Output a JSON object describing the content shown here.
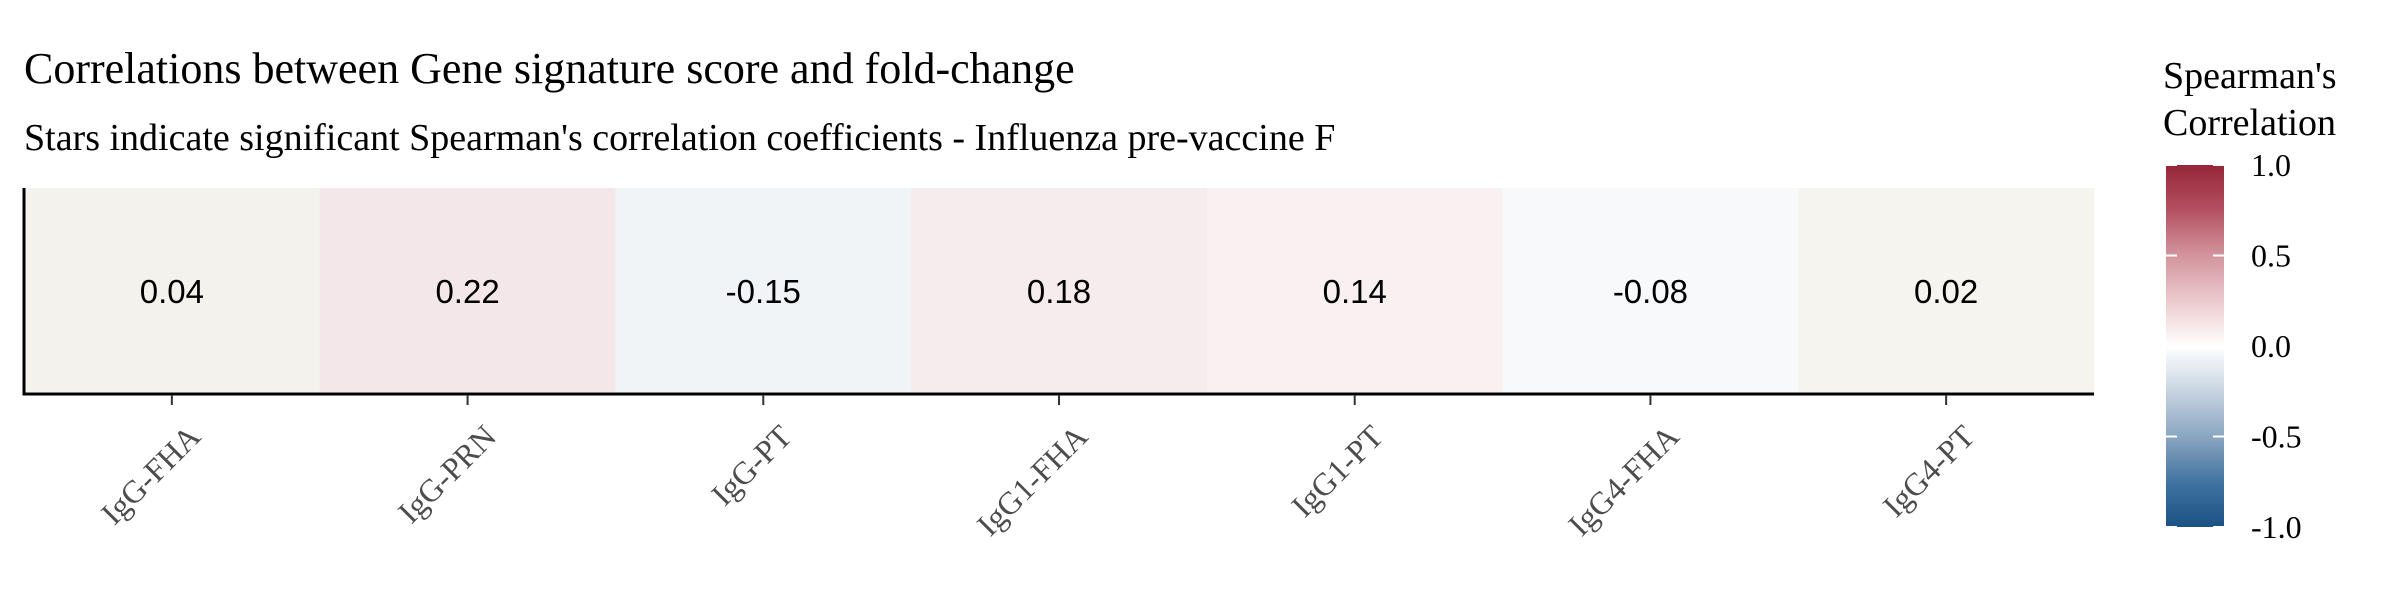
{
  "chart_data": {
    "type": "heatmap",
    "title": "Correlations between Gene signature score and fold-change",
    "subtitle": "Stars indicate significant Spearman's correlation coefficients - Influenza pre-vaccine F",
    "categories": [
      "IgG-FHA",
      "IgG-PRN",
      "IgG-PT",
      "IgG1-FHA",
      "IgG1-PT",
      "IgG4-FHA",
      "IgG4-PT"
    ],
    "values": [
      0.04,
      0.22,
      -0.15,
      0.18,
      0.14,
      -0.08,
      0.02
    ],
    "value_labels": [
      "0.04",
      "0.22",
      "-0.15",
      "0.18",
      "0.14",
      "-0.08",
      "0.02"
    ],
    "legend": {
      "title_line1": "Spearman's",
      "title_line2": "Correlation",
      "ticks": [
        1.0,
        0.5,
        0.0,
        -0.5,
        -1.0
      ],
      "tick_labels": [
        "1.0",
        "0.5",
        "0.0",
        "-0.5",
        "-1.0"
      ],
      "range": [
        -1,
        1
      ],
      "placement": "right"
    },
    "colors": {
      "high": "#96263a",
      "mid": "#ffffff",
      "low": "#1a5283"
    }
  }
}
